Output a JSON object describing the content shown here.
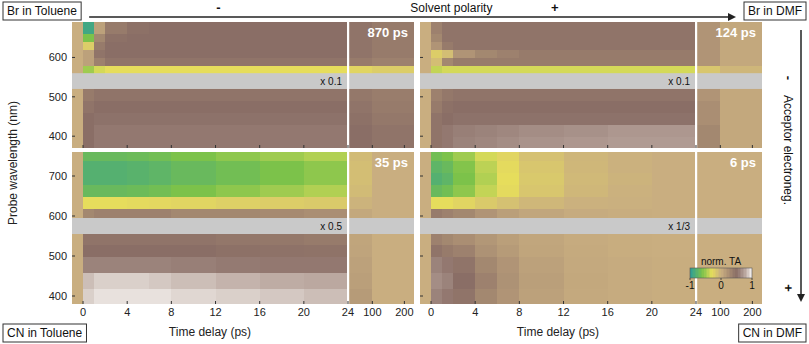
{
  "chart_data": [
    {
      "type": "heatmap",
      "title": "Br in Toluene",
      "annotations": [
        "870 ps",
        "x 0.1"
      ],
      "xlim": [
        -1,
        230
      ],
      "x_break": 24,
      "xticks": [
        0,
        4,
        8,
        12,
        16,
        20,
        24,
        100,
        200
      ],
      "ylim": [
        370,
        690
      ],
      "yticks": [
        400,
        500,
        600
      ],
      "masked_range": [
        520,
        560
      ],
      "tick_labels": "y",
      "time_edges": [
        -1,
        0,
        1,
        2,
        4,
        6,
        8,
        12,
        16,
        20,
        24,
        100,
        230
      ],
      "wavelength_edges": [
        370,
        400,
        430,
        460,
        490,
        520,
        560,
        580,
        600,
        620,
        640,
        660,
        690
      ],
      "cells": [
        [
          0,
          0.5,
          0.55,
          0.55,
          0.55,
          0.55,
          0.55,
          0.55,
          0.55,
          0.55,
          0.5,
          0.45
        ],
        [
          0,
          0.5,
          0.55,
          0.55,
          0.55,
          0.55,
          0.55,
          0.55,
          0.55,
          0.55,
          0.5,
          0.45
        ],
        [
          0,
          0.5,
          0.52,
          0.52,
          0.52,
          0.52,
          0.52,
          0.52,
          0.52,
          0.52,
          0.48,
          0.42
        ],
        [
          0,
          0.45,
          0.5,
          0.5,
          0.5,
          0.5,
          0.5,
          0.5,
          0.5,
          0.5,
          0.45,
          0.4
        ],
        [
          0,
          0.4,
          0.45,
          0.45,
          0.45,
          0.45,
          0.45,
          0.45,
          0.45,
          0.45,
          0.42,
          0.38
        ],
        [
          null,
          null,
          null,
          null,
          null,
          null,
          null,
          null,
          null,
          null,
          null,
          null
        ],
        [
          0,
          -0.5,
          -0.35,
          -0.3,
          -0.3,
          -0.3,
          -0.3,
          -0.3,
          -0.3,
          -0.3,
          -0.25,
          -0.2
        ],
        [
          0,
          0.1,
          0.35,
          0.45,
          0.45,
          0.45,
          0.45,
          0.45,
          0.45,
          0.45,
          0.4,
          0.35
        ],
        [
          0,
          0.1,
          0.45,
          0.5,
          0.5,
          0.5,
          0.5,
          0.5,
          0.5,
          0.5,
          0.45,
          0.4
        ],
        [
          0,
          -0.2,
          0.4,
          0.5,
          0.5,
          0.5,
          0.5,
          0.5,
          0.5,
          0.5,
          0.45,
          0.4
        ],
        [
          0,
          -0.6,
          0.3,
          0.48,
          0.5,
          0.5,
          0.5,
          0.5,
          0.5,
          0.5,
          0.45,
          0.4
        ],
        [
          0,
          -0.9,
          0.1,
          0.4,
          0.48,
          0.5,
          0.5,
          0.5,
          0.5,
          0.5,
          0.45,
          0.4
        ]
      ]
    },
    {
      "type": "heatmap",
      "title": "Br in DMF",
      "annotations": [
        "124 ps",
        "x 0.1"
      ],
      "xlim": [
        -1,
        230
      ],
      "x_break": 24,
      "xticks": [
        0,
        4,
        8,
        12,
        16,
        20,
        24,
        100,
        200
      ],
      "ylim": [
        370,
        690
      ],
      "yticks": [
        400,
        500,
        600
      ],
      "masked_range": [
        520,
        560
      ],
      "tick_labels": false,
      "time_edges": [
        -1,
        0,
        1,
        2,
        4,
        6,
        8,
        12,
        16,
        20,
        24,
        100,
        230
      ],
      "wavelength_edges": [
        370,
        400,
        430,
        460,
        490,
        520,
        560,
        580,
        600,
        620,
        640,
        660,
        690
      ],
      "cells": [
        [
          0,
          0.45,
          0.55,
          0.6,
          0.62,
          0.65,
          0.68,
          0.7,
          0.72,
          0.72,
          0.3,
          0.05
        ],
        [
          0,
          0.45,
          0.55,
          0.58,
          0.6,
          0.62,
          0.65,
          0.67,
          0.7,
          0.7,
          0.3,
          0.05
        ],
        [
          0,
          0.45,
          0.5,
          0.52,
          0.52,
          0.52,
          0.52,
          0.52,
          0.52,
          0.52,
          0.25,
          0.05
        ],
        [
          0,
          0.4,
          0.48,
          0.5,
          0.5,
          0.5,
          0.5,
          0.5,
          0.5,
          0.5,
          0.25,
          0.05
        ],
        [
          0,
          0.35,
          0.42,
          0.45,
          0.45,
          0.45,
          0.45,
          0.45,
          0.45,
          0.45,
          0.2,
          0.05
        ],
        [
          null,
          null,
          null,
          null,
          null,
          null,
          null,
          null,
          null,
          null,
          null,
          null
        ],
        [
          0,
          -0.4,
          -0.35,
          -0.35,
          -0.35,
          -0.35,
          -0.35,
          -0.35,
          -0.35,
          -0.35,
          -0.15,
          -0.05
        ],
        [
          0,
          -0.1,
          0.3,
          0.4,
          0.4,
          0.4,
          0.4,
          0.4,
          0.4,
          0.4,
          0.2,
          0.05
        ],
        [
          0,
          -0.2,
          -0.1,
          0.2,
          0.3,
          0.35,
          0.4,
          0.4,
          0.4,
          0.4,
          0.2,
          0.05
        ],
        [
          0,
          0.2,
          0.4,
          0.45,
          0.45,
          0.45,
          0.45,
          0.45,
          0.45,
          0.45,
          0.2,
          0.05
        ],
        [
          0,
          0.3,
          0.45,
          0.45,
          0.45,
          0.45,
          0.45,
          0.45,
          0.45,
          0.45,
          0.2,
          0.05
        ],
        [
          0,
          0.35,
          0.45,
          0.45,
          0.45,
          0.45,
          0.45,
          0.45,
          0.45,
          0.45,
          0.2,
          0.05
        ]
      ]
    },
    {
      "type": "heatmap",
      "title": "CN in Toluene",
      "xlabel": "Time delay (ps)",
      "annotations": [
        "35 ps",
        "x 0.5"
      ],
      "xlim": [
        -1,
        230
      ],
      "x_break": 24,
      "xticks": [
        0,
        4,
        8,
        12,
        16,
        20,
        24,
        100,
        200
      ],
      "ylim": [
        380,
        760
      ],
      "yticks": [
        400,
        500,
        600,
        700
      ],
      "masked_range": [
        555,
        595
      ],
      "tick_labels": true,
      "time_edges": [
        -1,
        0,
        1,
        2,
        4,
        6,
        8,
        12,
        16,
        20,
        24,
        100,
        230
      ],
      "wavelength_edges": [
        380,
        420,
        460,
        500,
        530,
        555,
        595,
        620,
        650,
        680,
        710,
        740,
        760
      ],
      "cells": [
        [
          0,
          0.9,
          0.95,
          0.95,
          0.95,
          0.95,
          0.92,
          0.9,
          0.88,
          0.85,
          0.15,
          0
        ],
        [
          0,
          0.85,
          0.9,
          0.9,
          0.9,
          0.88,
          0.85,
          0.82,
          0.8,
          0.78,
          0.12,
          0
        ],
        [
          0,
          0.6,
          0.6,
          0.6,
          0.6,
          0.6,
          0.58,
          0.56,
          0.55,
          0.55,
          0.1,
          0
        ],
        [
          0,
          0.5,
          0.5,
          0.5,
          0.5,
          0.5,
          0.5,
          0.48,
          0.47,
          0.46,
          0.08,
          0
        ],
        [
          0,
          0.45,
          0.45,
          0.45,
          0.45,
          0.45,
          0.45,
          0.43,
          0.42,
          0.4,
          0.07,
          0
        ],
        [
          null,
          null,
          null,
          null,
          null,
          null,
          null,
          null,
          null,
          null,
          null,
          null
        ],
        [
          0,
          0.3,
          0.35,
          0.35,
          0.35,
          0.35,
          0.3,
          0.3,
          0.28,
          0.25,
          0.05,
          0
        ],
        [
          0,
          -0.3,
          -0.3,
          -0.3,
          -0.28,
          -0.27,
          -0.25,
          -0.22,
          -0.2,
          -0.18,
          -0.03,
          0
        ],
        [
          0,
          -0.7,
          -0.7,
          -0.7,
          -0.68,
          -0.65,
          -0.6,
          -0.55,
          -0.5,
          -0.45,
          -0.08,
          0
        ],
        [
          0,
          -0.8,
          -0.8,
          -0.8,
          -0.78,
          -0.75,
          -0.7,
          -0.65,
          -0.6,
          -0.55,
          -0.1,
          0
        ],
        [
          0,
          -0.8,
          -0.8,
          -0.8,
          -0.78,
          -0.75,
          -0.7,
          -0.65,
          -0.6,
          -0.55,
          -0.1,
          0
        ],
        [
          0,
          -0.7,
          -0.7,
          -0.7,
          -0.68,
          -0.65,
          -0.6,
          -0.55,
          -0.5,
          -0.45,
          -0.08,
          0
        ]
      ]
    },
    {
      "type": "heatmap",
      "title": "CN in DMF",
      "xlabel": "Time delay (ps)",
      "annotations": [
        "6 ps",
        "x 1/3"
      ],
      "xlim": [
        -1,
        230
      ],
      "x_break": 24,
      "xticks": [
        0,
        4,
        8,
        12,
        16,
        20,
        24,
        100,
        200
      ],
      "ylim": [
        380,
        760
      ],
      "yticks": [
        400,
        500,
        600,
        700
      ],
      "masked_range": [
        555,
        595
      ],
      "tick_labels": "x",
      "time_edges": [
        -1,
        0,
        1,
        2,
        4,
        6,
        8,
        12,
        16,
        20,
        24,
        100,
        230
      ],
      "wavelength_edges": [
        380,
        420,
        460,
        500,
        530,
        555,
        595,
        620,
        650,
        680,
        710,
        740,
        760
      ],
      "cells": [
        [
          0,
          0.6,
          0.55,
          0.45,
          0.3,
          0.2,
          0.1,
          0.04,
          0.02,
          0.01,
          0,
          0
        ],
        [
          0,
          0.65,
          0.6,
          0.5,
          0.35,
          0.22,
          0.12,
          0.05,
          0.02,
          0.01,
          0,
          0
        ],
        [
          0,
          0.6,
          0.55,
          0.45,
          0.3,
          0.2,
          0.1,
          0.04,
          0.02,
          0.01,
          0,
          0
        ],
        [
          0,
          0.45,
          0.4,
          0.35,
          0.22,
          0.15,
          0.07,
          0.03,
          0.01,
          0,
          0,
          0
        ],
        [
          0,
          0.35,
          0.3,
          0.25,
          0.18,
          0.12,
          0.06,
          0.02,
          0.01,
          0,
          0,
          0
        ],
        [
          null,
          null,
          null,
          null,
          null,
          null,
          null,
          null,
          null,
          null,
          null,
          null
        ],
        [
          0,
          0.4,
          0.35,
          0.3,
          0.2,
          0.12,
          0.06,
          0.02,
          0.01,
          0,
          0,
          0
        ],
        [
          0,
          -0.3,
          -0.3,
          -0.25,
          -0.18,
          -0.12,
          -0.06,
          -0.02,
          -0.01,
          0,
          0,
          0
        ],
        [
          0,
          -0.7,
          -0.65,
          -0.55,
          -0.4,
          -0.28,
          -0.15,
          -0.06,
          -0.02,
          0,
          0,
          0
        ],
        [
          0,
          -0.8,
          -0.75,
          -0.6,
          -0.45,
          -0.3,
          -0.17,
          -0.07,
          -0.03,
          0,
          0,
          0
        ],
        [
          0,
          -0.75,
          -0.7,
          -0.58,
          -0.42,
          -0.28,
          -0.15,
          -0.06,
          -0.02,
          0,
          0,
          0
        ],
        [
          0,
          -0.65,
          -0.6,
          -0.5,
          -0.35,
          -0.25,
          -0.12,
          -0.05,
          -0.02,
          0,
          0,
          0
        ]
      ]
    }
  ],
  "figure": {
    "ylabel": "Probe wavelength (nm)",
    "solvent_axis": {
      "label": "Solvent polarity",
      "low": "-",
      "high": "+"
    },
    "acceptor_axis": {
      "label": "Acceptor electroneg.",
      "low": "-",
      "high": "+"
    },
    "colorbar": {
      "label": "norm. TA",
      "range": [
        -1,
        1
      ],
      "ticks": [
        -1,
        0,
        1
      ]
    }
  }
}
